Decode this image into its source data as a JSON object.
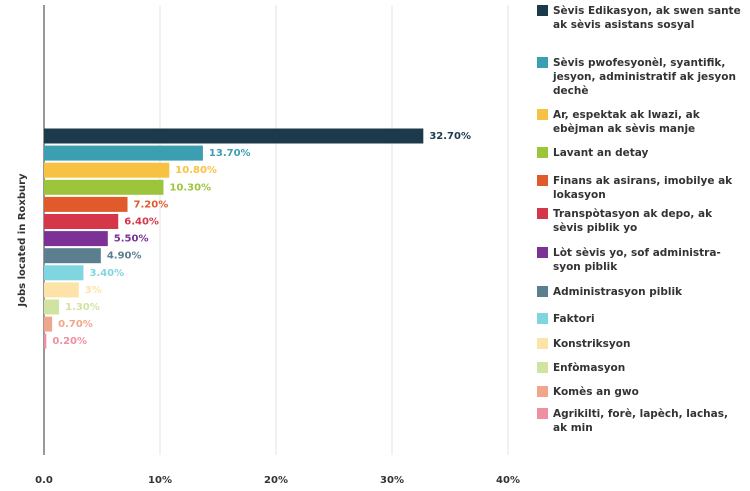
{
  "chart_data": {
    "type": "bar",
    "orientation": "horizontal",
    "y_label": "Jobs located in Roxbury",
    "categories": [
      "Sèvis Edikasyon, ak swen sante ak sèvis asistans sosyal",
      "Sèvis pwofesyonèl, syantifik, jesyon, administratif ak jesyon dechè",
      "Ar, espektak ak lwazi, ak ebèjman ak sèvis manje",
      "Lavant an detay",
      "Finans ak asirans, imobilye ak lokasyon",
      "Transpòtasyon ak depo, ak sèvis piblik yo",
      "Lòt sèvis yo, sof administra-syon piblik",
      "Administrasyon piblik",
      "Faktori",
      "Konstriksyon",
      "Enfòmasyon",
      "Komès an gwo",
      "Agrikilti, forè, lapèch, lachas, ak min"
    ],
    "values": [
      32.7,
      13.7,
      10.8,
      10.3,
      7.2,
      6.4,
      5.5,
      4.9,
      3.4,
      3,
      1.3,
      0.7,
      0.2
    ],
    "value_labels": [
      "32.70%",
      "13.70%",
      "10.80%",
      "10.30%",
      "7.20%",
      "6.40%",
      "5.50%",
      "4.90%",
      "3.40%",
      "3%",
      "1.30%",
      "0.70%",
      "0.20%"
    ],
    "colors": [
      "#1d3a4c",
      "#3b9fb1",
      "#f7c244",
      "#9cc53b",
      "#e15a2c",
      "#d5364a",
      "#7b3195",
      "#5c7f8f",
      "#80d6e0",
      "#fde3a8",
      "#d0e3a1",
      "#f0a68d",
      "#ef8fa1"
    ],
    "xlim": [
      0,
      40
    ],
    "xticks": [
      {
        "value": 0,
        "label": "0.0"
      },
      {
        "value": 10,
        "label": "10%"
      },
      {
        "value": 20,
        "label": "20%"
      },
      {
        "value": 30,
        "label": "30%"
      },
      {
        "value": 40,
        "label": "40%"
      }
    ],
    "grid": true,
    "legend": "right"
  }
}
